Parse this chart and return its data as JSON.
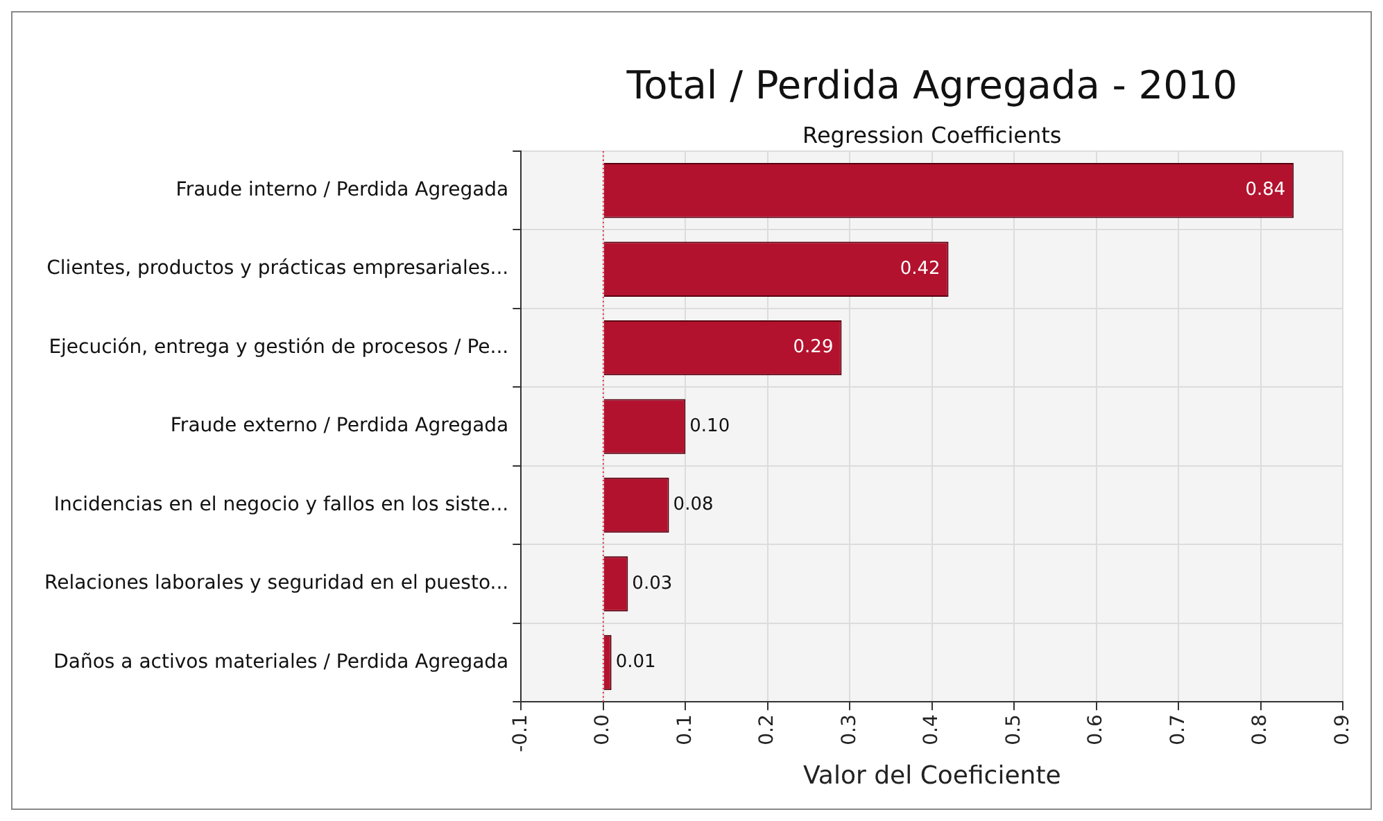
{
  "chart_data": {
    "type": "bar",
    "orientation": "horizontal",
    "title": "Total / Perdida Agregada - 2010",
    "subtitle": "Regression Coefficients",
    "xlabel": "Valor del Coeficiente",
    "categories": [
      "Fraude interno / Perdida Agregada",
      "Clientes, productos y prácticas empresariales...",
      "Ejecución, entrega y gestión de procesos / Pe...",
      "Fraude externo / Perdida Agregada",
      "Incidencias en el negocio y fallos en los siste...",
      "Relaciones laborales y seguridad en el puesto...",
      "Daños a activos materiales / Perdida Agregada"
    ],
    "values": [
      0.84,
      0.42,
      0.29,
      0.1,
      0.08,
      0.03,
      0.01
    ],
    "color": "#b3122e",
    "value_labels": [
      "0.84",
      "0.42",
      "0.29",
      "0.10",
      "0.08",
      "0.03",
      "0.01"
    ],
    "xlim": [
      -0.1,
      0.9
    ],
    "xticks": [
      -0.1,
      {
        "value": 0,
        "label": "0.0"
      },
      0.1,
      0.2,
      0.3,
      0.4,
      0.5,
      0.6,
      0.7,
      0.8,
      0.9
    ],
    "ref_lines": [
      {
        "axis": "x",
        "value": 0,
        "color": "#e0304a",
        "line_style": "dotted"
      }
    ],
    "grid": true,
    "legend": false
  }
}
